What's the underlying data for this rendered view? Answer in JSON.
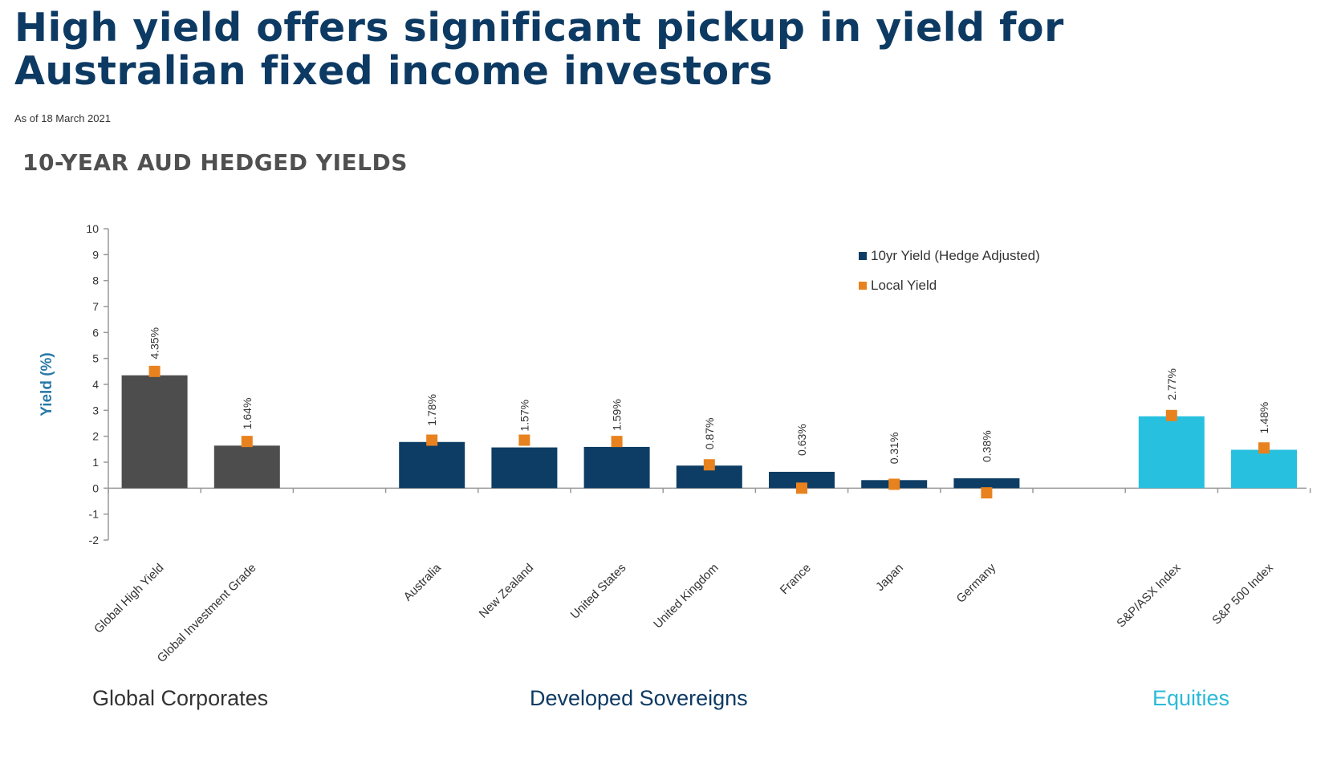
{
  "header": {
    "title_line1": "High yield offers significant pickup in yield for",
    "title_line2": "Australian fixed income investors",
    "as_of": "As of 18 March 2021"
  },
  "chart_data": {
    "type": "bar",
    "title": "10-YEAR AUD HEDGED YIELDS",
    "ylabel": "Yield (%)",
    "xlabel": "",
    "ylim": [
      -2,
      10
    ],
    "yticks": [
      -2,
      -1,
      0,
      1,
      2,
      3,
      4,
      5,
      6,
      7,
      8,
      9,
      10
    ],
    "categories": [
      "Global High Yield",
      "Global Investment Grade",
      "",
      "Australia",
      "New Zealand",
      "United States",
      "United Kingdom",
      "France",
      "Japan",
      "Germany",
      "",
      "S&P/ASX Index",
      "S&P 500 Index"
    ],
    "series": [
      {
        "name": "10yr Yield (Hedge Adjusted)",
        "values": [
          4.35,
          1.64,
          null,
          1.78,
          1.57,
          1.59,
          0.87,
          0.63,
          0.31,
          0.38,
          null,
          2.77,
          1.48
        ],
        "labels": [
          "4.35%",
          "1.64%",
          "",
          "1.78%",
          "1.57%",
          "1.59%",
          "0.87%",
          "0.63%",
          "0.31%",
          "0.38%",
          "",
          "2.77%",
          "1.48%"
        ]
      },
      {
        "name": "Local Yield",
        "values": [
          4.5,
          1.8,
          null,
          1.85,
          1.85,
          1.8,
          0.9,
          0.0,
          0.15,
          -0.18,
          null,
          2.8,
          1.55
        ]
      }
    ],
    "groups": [
      {
        "label": "Global Corporates",
        "color": "#333333"
      },
      {
        "label": "Developed Sovereigns",
        "color": "#0d3a63"
      },
      {
        "label": "Equities",
        "color": "#2bbad8"
      }
    ],
    "colors": {
      "corporates": "#4d4d4d",
      "sovereigns": "#0d3d64",
      "equities": "#27c1df",
      "local_yield": "#e8821e",
      "axis": "#999999"
    },
    "legend_position": "top-right",
    "grid": false
  }
}
